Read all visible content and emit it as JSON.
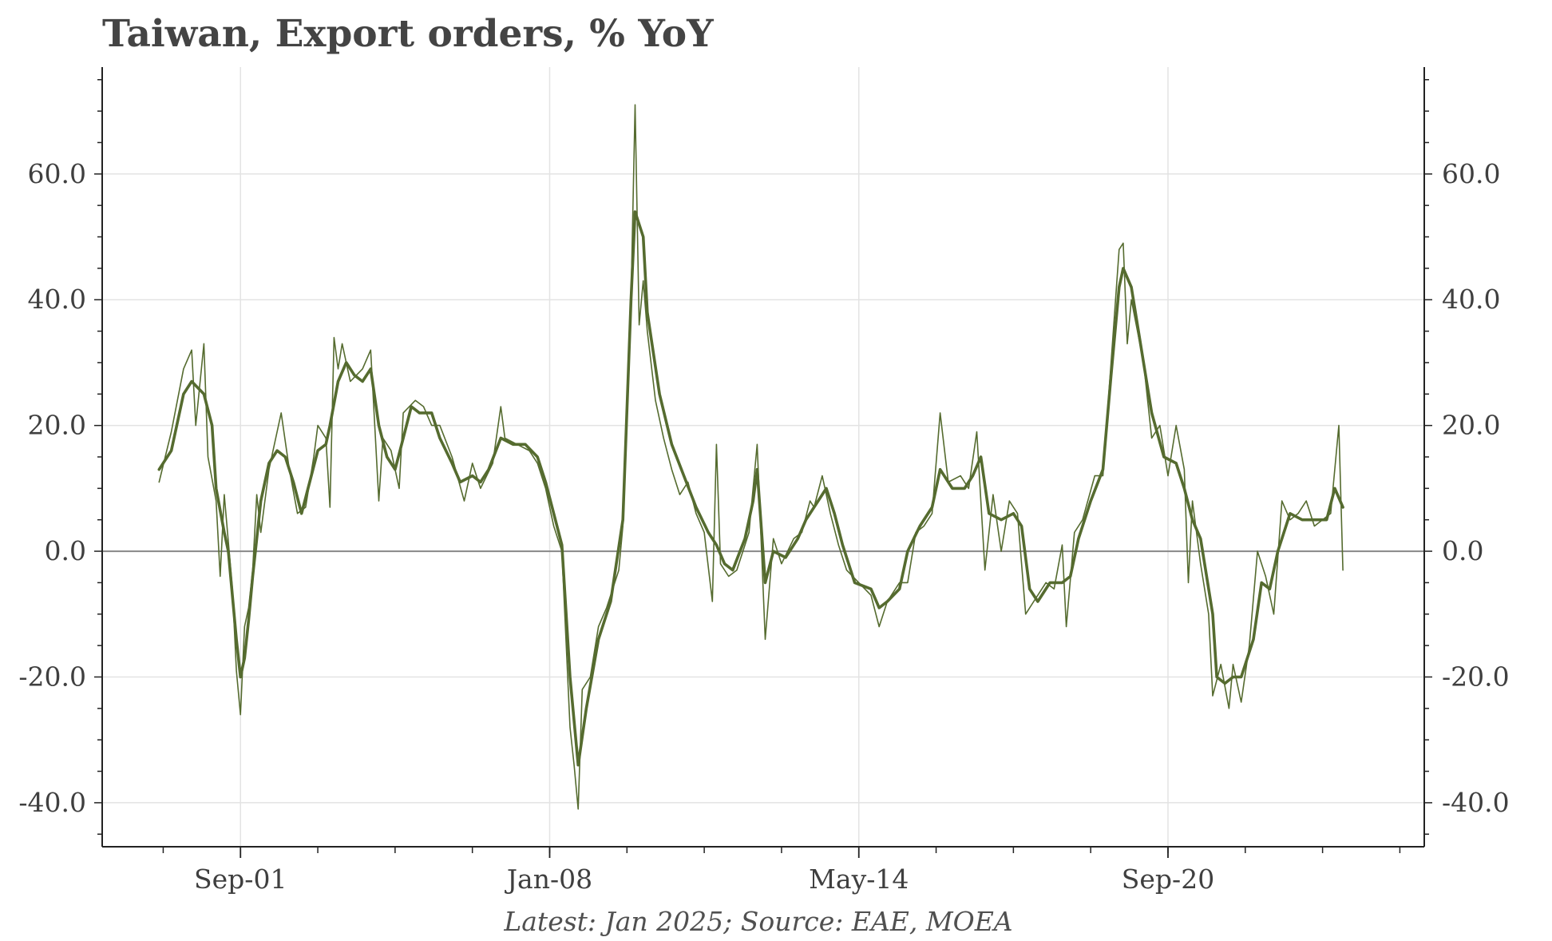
{
  "chart_data": {
    "type": "line",
    "title": "Taiwan, Export orders, % YoY",
    "footnote": "Latest: Jan 2025; Source: EAE, MOEA",
    "xlabel": "",
    "ylabel": "",
    "x_range": [
      "1998-11",
      "2025-12"
    ],
    "ylim": [
      -47,
      77
    ],
    "x_ticks": [
      {
        "date": "2001-09",
        "label": "Sep-01"
      },
      {
        "date": "2008-01",
        "label": "Jan-08"
      },
      {
        "date": "2014-05",
        "label": "May-14"
      },
      {
        "date": "2020-09",
        "label": "Sep-20"
      }
    ],
    "y_ticks": [
      {
        "value": 60,
        "label": "60.0"
      },
      {
        "value": 40,
        "label": "40.0"
      },
      {
        "value": 20,
        "label": "20.0"
      },
      {
        "value": 0,
        "label": "0.0"
      },
      {
        "value": -20,
        "label": "-20.0"
      },
      {
        "value": -40,
        "label": "-40.0"
      }
    ],
    "grid": true,
    "zero_line": true,
    "legend": "none",
    "line_color": "#556b2f",
    "zero_line_color": "#888888",
    "series": [
      {
        "style": "thin",
        "points": [
          [
            "2000-01",
            11
          ],
          [
            "2000-04",
            19
          ],
          [
            "2000-07",
            29
          ],
          [
            "2000-09",
            32
          ],
          [
            "2000-10",
            20
          ],
          [
            "2000-12",
            33
          ],
          [
            "2001-01",
            15
          ],
          [
            "2001-03",
            8
          ],
          [
            "2001-04",
            -4
          ],
          [
            "2001-05",
            9
          ],
          [
            "2001-07",
            -6
          ],
          [
            "2001-08",
            -19
          ],
          [
            "2001-09",
            -26
          ],
          [
            "2001-10",
            -12
          ],
          [
            "2001-11",
            -9
          ],
          [
            "2001-12",
            -3
          ],
          [
            "2002-01",
            9
          ],
          [
            "2002-02",
            3
          ],
          [
            "2002-04",
            13
          ],
          [
            "2002-06",
            19
          ],
          [
            "2002-07",
            22
          ],
          [
            "2002-09",
            13
          ],
          [
            "2002-11",
            6
          ],
          [
            "2003-01",
            7
          ],
          [
            "2003-03",
            15
          ],
          [
            "2003-04",
            20
          ],
          [
            "2003-06",
            18
          ],
          [
            "2003-07",
            7
          ],
          [
            "2003-08",
            34
          ],
          [
            "2003-09",
            29
          ],
          [
            "2003-10",
            33
          ],
          [
            "2003-12",
            27
          ],
          [
            "2004-03",
            29
          ],
          [
            "2004-05",
            32
          ],
          [
            "2004-06",
            20
          ],
          [
            "2004-07",
            8
          ],
          [
            "2004-08",
            18
          ],
          [
            "2004-10",
            16
          ],
          [
            "2004-12",
            10
          ],
          [
            "2005-01",
            22
          ],
          [
            "2005-04",
            24
          ],
          [
            "2005-06",
            23
          ],
          [
            "2005-08",
            20
          ],
          [
            "2005-10",
            20
          ],
          [
            "2006-01",
            15
          ],
          [
            "2006-04",
            8
          ],
          [
            "2006-06",
            14
          ],
          [
            "2006-08",
            10
          ],
          [
            "2006-11",
            14
          ],
          [
            "2007-01",
            23
          ],
          [
            "2007-02",
            18
          ],
          [
            "2007-05",
            17
          ],
          [
            "2007-08",
            16
          ],
          [
            "2007-10",
            14
          ],
          [
            "2007-12",
            10
          ],
          [
            "2008-02",
            4
          ],
          [
            "2008-04",
            0
          ],
          [
            "2008-06",
            -28
          ],
          [
            "2008-07",
            -34
          ],
          [
            "2008-08",
            -41
          ],
          [
            "2008-09",
            -22
          ],
          [
            "2008-11",
            -20
          ],
          [
            "2009-01",
            -12
          ],
          [
            "2009-03",
            -9
          ],
          [
            "2009-06",
            -3
          ],
          [
            "2009-07",
            4
          ],
          [
            "2009-09",
            40
          ],
          [
            "2009-10",
            71
          ],
          [
            "2009-11",
            36
          ],
          [
            "2009-12",
            43
          ],
          [
            "2010-01",
            35
          ],
          [
            "2010-03",
            24
          ],
          [
            "2010-05",
            18
          ],
          [
            "2010-07",
            13
          ],
          [
            "2010-09",
            9
          ],
          [
            "2010-11",
            11
          ],
          [
            "2011-01",
            6
          ],
          [
            "2011-03",
            3
          ],
          [
            "2011-05",
            -8
          ],
          [
            "2011-06",
            17
          ],
          [
            "2011-07",
            -2
          ],
          [
            "2011-09",
            -4
          ],
          [
            "2011-11",
            -3
          ],
          [
            "2012-02",
            3
          ],
          [
            "2012-04",
            17
          ],
          [
            "2012-06",
            -14
          ],
          [
            "2012-08",
            2
          ],
          [
            "2012-10",
            -2
          ],
          [
            "2013-01",
            2
          ],
          [
            "2013-03",
            3
          ],
          [
            "2013-05",
            8
          ],
          [
            "2013-06",
            7
          ],
          [
            "2013-08",
            12
          ],
          [
            "2013-10",
            6
          ],
          [
            "2013-12",
            1
          ],
          [
            "2014-02",
            -3
          ],
          [
            "2014-05",
            -5
          ],
          [
            "2014-08",
            -7
          ],
          [
            "2014-10",
            -12
          ],
          [
            "2014-12",
            -8
          ],
          [
            "2015-03",
            -5
          ],
          [
            "2015-05",
            -5
          ],
          [
            "2015-07",
            3
          ],
          [
            "2015-09",
            4
          ],
          [
            "2015-11",
            6
          ],
          [
            "2016-01",
            22
          ],
          [
            "2016-03",
            11
          ],
          [
            "2016-06",
            12
          ],
          [
            "2016-08",
            10
          ],
          [
            "2016-10",
            19
          ],
          [
            "2016-12",
            -3
          ],
          [
            "2017-02",
            9
          ],
          [
            "2017-04",
            0
          ],
          [
            "2017-06",
            8
          ],
          [
            "2017-08",
            6
          ],
          [
            "2017-10",
            -10
          ],
          [
            "2017-12",
            -8
          ],
          [
            "2018-03",
            -5
          ],
          [
            "2018-05",
            -6
          ],
          [
            "2018-07",
            1
          ],
          [
            "2018-08",
            -12
          ],
          [
            "2018-10",
            3
          ],
          [
            "2018-12",
            5
          ],
          [
            "2019-03",
            12
          ],
          [
            "2019-05",
            12
          ],
          [
            "2019-07",
            30
          ],
          [
            "2019-09",
            48
          ],
          [
            "2019-10",
            49
          ],
          [
            "2019-11",
            33
          ],
          [
            "2019-12",
            40
          ],
          [
            "2020-03",
            30
          ],
          [
            "2020-05",
            18
          ],
          [
            "2020-07",
            20
          ],
          [
            "2020-09",
            12
          ],
          [
            "2020-11",
            20
          ],
          [
            "2021-01",
            13
          ],
          [
            "2021-02",
            -5
          ],
          [
            "2021-03",
            8
          ],
          [
            "2021-05",
            -2
          ],
          [
            "2021-07",
            -10
          ],
          [
            "2021-08",
            -23
          ],
          [
            "2021-10",
            -18
          ],
          [
            "2021-12",
            -25
          ],
          [
            "2022-01",
            -18
          ],
          [
            "2022-03",
            -24
          ],
          [
            "2022-05",
            -15
          ],
          [
            "2022-07",
            0
          ],
          [
            "2022-09",
            -4
          ],
          [
            "2022-11",
            -10
          ],
          [
            "2023-01",
            8
          ],
          [
            "2023-03",
            5
          ],
          [
            "2023-05",
            6
          ],
          [
            "2023-07",
            8
          ],
          [
            "2023-09",
            4
          ],
          [
            "2023-11",
            5
          ],
          [
            "2024-01",
            6
          ],
          [
            "2024-03",
            20
          ],
          [
            "2024-04",
            -3
          ]
        ]
      },
      {
        "style": "thick",
        "points": [
          [
            "2000-01",
            13
          ],
          [
            "2000-04",
            16
          ],
          [
            "2000-07",
            25
          ],
          [
            "2000-09",
            27
          ],
          [
            "2000-12",
            25
          ],
          [
            "2001-02",
            20
          ],
          [
            "2001-03",
            10
          ],
          [
            "2001-05",
            3
          ],
          [
            "2001-06",
            0
          ],
          [
            "2001-08",
            -14
          ],
          [
            "2001-09",
            -20
          ],
          [
            "2001-10",
            -17
          ],
          [
            "2001-11",
            -11
          ],
          [
            "2001-12",
            -4
          ],
          [
            "2002-01",
            2
          ],
          [
            "2002-02",
            8
          ],
          [
            "2002-04",
            14
          ],
          [
            "2002-06",
            16
          ],
          [
            "2002-08",
            15
          ],
          [
            "2002-10",
            11
          ],
          [
            "2002-12",
            6
          ],
          [
            "2003-02",
            11
          ],
          [
            "2003-04",
            16
          ],
          [
            "2003-06",
            17
          ],
          [
            "2003-07",
            20
          ],
          [
            "2003-09",
            27
          ],
          [
            "2003-11",
            30
          ],
          [
            "2004-01",
            28
          ],
          [
            "2004-03",
            27
          ],
          [
            "2004-05",
            29
          ],
          [
            "2004-07",
            20
          ],
          [
            "2004-09",
            15
          ],
          [
            "2004-11",
            13
          ],
          [
            "2005-01",
            18
          ],
          [
            "2005-03",
            23
          ],
          [
            "2005-05",
            22
          ],
          [
            "2005-08",
            22
          ],
          [
            "2005-10",
            18
          ],
          [
            "2006-01",
            14
          ],
          [
            "2006-03",
            11
          ],
          [
            "2006-06",
            12
          ],
          [
            "2006-08",
            11
          ],
          [
            "2006-10",
            13
          ],
          [
            "2007-01",
            18
          ],
          [
            "2007-04",
            17
          ],
          [
            "2007-07",
            17
          ],
          [
            "2007-10",
            15
          ],
          [
            "2007-12",
            11
          ],
          [
            "2008-02",
            6
          ],
          [
            "2008-04",
            1
          ],
          [
            "2008-06",
            -20
          ],
          [
            "2008-08",
            -34
          ],
          [
            "2008-10",
            -25
          ],
          [
            "2009-01",
            -14
          ],
          [
            "2009-04",
            -8
          ],
          [
            "2009-07",
            5
          ],
          [
            "2009-09",
            40
          ],
          [
            "2009-10",
            54
          ],
          [
            "2009-12",
            50
          ],
          [
            "2010-01",
            38
          ],
          [
            "2010-04",
            25
          ],
          [
            "2010-07",
            17
          ],
          [
            "2010-10",
            12
          ],
          [
            "2011-01",
            7
          ],
          [
            "2011-04",
            3
          ],
          [
            "2011-06",
            1
          ],
          [
            "2011-08",
            -2
          ],
          [
            "2011-10",
            -3
          ],
          [
            "2012-01",
            2
          ],
          [
            "2012-03",
            8
          ],
          [
            "2012-04",
            13
          ],
          [
            "2012-06",
            -5
          ],
          [
            "2012-08",
            0
          ],
          [
            "2012-11",
            -1
          ],
          [
            "2013-02",
            2
          ],
          [
            "2013-04",
            5
          ],
          [
            "2013-07",
            8
          ],
          [
            "2013-09",
            10
          ],
          [
            "2013-11",
            6
          ],
          [
            "2014-01",
            1
          ],
          [
            "2014-04",
            -5
          ],
          [
            "2014-08",
            -6
          ],
          [
            "2014-10",
            -9
          ],
          [
            "2014-12",
            -8
          ],
          [
            "2015-03",
            -6
          ],
          [
            "2015-05",
            0
          ],
          [
            "2015-08",
            4
          ],
          [
            "2015-11",
            7
          ],
          [
            "2016-01",
            13
          ],
          [
            "2016-04",
            10
          ],
          [
            "2016-07",
            10
          ],
          [
            "2016-09",
            12
          ],
          [
            "2016-11",
            15
          ],
          [
            "2017-01",
            6
          ],
          [
            "2017-04",
            5
          ],
          [
            "2017-07",
            6
          ],
          [
            "2017-09",
            4
          ],
          [
            "2017-11",
            -6
          ],
          [
            "2018-01",
            -8
          ],
          [
            "2018-04",
            -5
          ],
          [
            "2018-07",
            -5
          ],
          [
            "2018-09",
            -4
          ],
          [
            "2018-11",
            2
          ],
          [
            "2019-02",
            8
          ],
          [
            "2019-05",
            13
          ],
          [
            "2019-07",
            28
          ],
          [
            "2019-09",
            42
          ],
          [
            "2019-10",
            45
          ],
          [
            "2019-12",
            42
          ],
          [
            "2020-02",
            34
          ],
          [
            "2020-05",
            22
          ],
          [
            "2020-08",
            15
          ],
          [
            "2020-11",
            14
          ],
          [
            "2021-01",
            10
          ],
          [
            "2021-03",
            5
          ],
          [
            "2021-05",
            2
          ],
          [
            "2021-08",
            -10
          ],
          [
            "2021-09",
            -20
          ],
          [
            "2021-11",
            -21
          ],
          [
            "2022-01",
            -20
          ],
          [
            "2022-03",
            -20
          ],
          [
            "2022-06",
            -14
          ],
          [
            "2022-08",
            -5
          ],
          [
            "2022-10",
            -6
          ],
          [
            "2022-12",
            0
          ],
          [
            "2023-03",
            6
          ],
          [
            "2023-06",
            5
          ],
          [
            "2023-09",
            5
          ],
          [
            "2023-12",
            5
          ],
          [
            "2024-02",
            10
          ],
          [
            "2024-04",
            7
          ]
        ]
      }
    ]
  }
}
